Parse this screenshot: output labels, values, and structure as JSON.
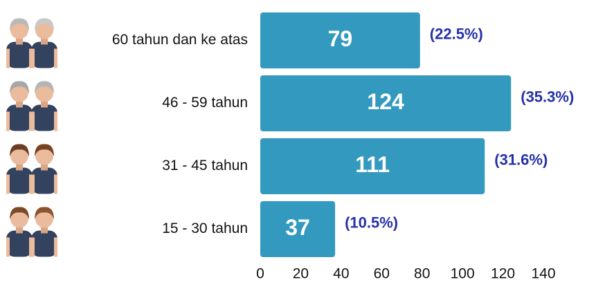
{
  "chart_data": {
    "type": "bar",
    "orientation": "horizontal",
    "categories": [
      "60 tahun dan ke atas",
      "46 - 59 tahun",
      "31 - 45 tahun",
      "15 - 30 tahun"
    ],
    "values": [
      79,
      124,
      111,
      37
    ],
    "percent_labels": [
      "(22.5%)",
      "(35.3%)",
      "(31.6%)",
      "(10.5%)"
    ],
    "color": "#3399be",
    "xlim": [
      0,
      140
    ],
    "xticks": [
      0,
      20,
      40,
      60,
      80,
      100,
      120,
      140
    ]
  }
}
